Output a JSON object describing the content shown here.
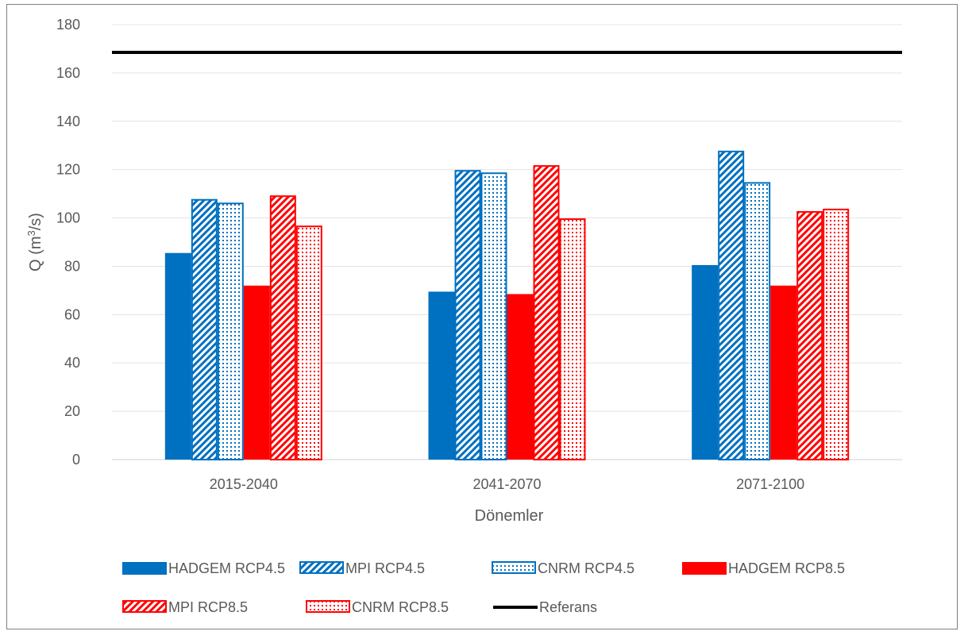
{
  "chart_data": {
    "type": "bar",
    "categories": [
      "2015-2040",
      "2041-2070",
      "2071-2100"
    ],
    "xlabel": "Dönemler",
    "ylabel": {
      "prefix": "Q (m",
      "sup": "3",
      "suffix": "/s)"
    },
    "ylim": [
      0,
      180
    ],
    "yticks": [
      0,
      20,
      40,
      60,
      80,
      100,
      120,
      140,
      160,
      180
    ],
    "grid": true,
    "legend_position": "bottom",
    "series": [
      {
        "name": "HADGEM RCP4.5",
        "color": "#0070c0",
        "pattern": "solid",
        "values": [
          85.5,
          69.5,
          80.5
        ]
      },
      {
        "name": "MPI RCP4.5",
        "color": "#0070c0",
        "pattern": "diagonal",
        "values": [
          107.5,
          119.5,
          127.5
        ]
      },
      {
        "name": "CNRM RCP4.5",
        "color": "#0070c0",
        "pattern": "dotted",
        "values": [
          106,
          118.5,
          114.5
        ]
      },
      {
        "name": "HADGEM RCP8.5",
        "color": "#ff0000",
        "pattern": "solid",
        "values": [
          72,
          68.5,
          72
        ]
      },
      {
        "name": "MPI RCP8.5",
        "color": "#ff0000",
        "pattern": "diagonal",
        "values": [
          109,
          121.5,
          102.5
        ]
      },
      {
        "name": "CNRM RCP8.5",
        "color": "#ff0000",
        "pattern": "dotted",
        "values": [
          96.5,
          99.5,
          103.5
        ]
      }
    ],
    "reference": {
      "name": "Referans",
      "value": 168.5,
      "color": "#000000"
    }
  }
}
